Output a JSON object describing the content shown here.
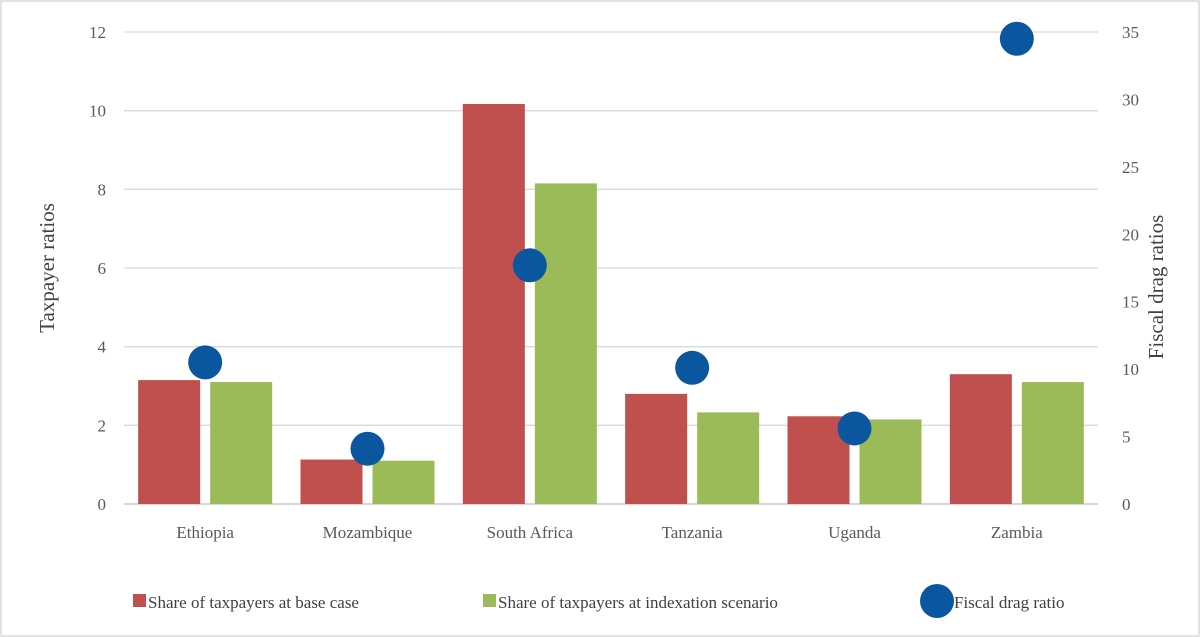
{
  "chart_data": {
    "type": "bar",
    "categories": [
      "Ethiopia",
      "Mozambique",
      "South Africa",
      "Tanzania",
      "Uganda",
      "Zambia"
    ],
    "series": [
      {
        "name": "Share of taxpayers at base case",
        "kind": "bar",
        "axis": "left",
        "color": "#c0504d",
        "values": [
          3.15,
          1.13,
          10.17,
          2.8,
          2.23,
          3.3
        ]
      },
      {
        "name": "Share of taxpayers at indexation scenario",
        "kind": "bar",
        "axis": "left",
        "color": "#9bbb59",
        "values": [
          3.1,
          1.1,
          8.15,
          2.33,
          2.15,
          3.1
        ]
      },
      {
        "name": "Fiscal drag ratio",
        "kind": "scatter",
        "axis": "right",
        "color": "#0b579f",
        "values": [
          10.5,
          4.1,
          17.7,
          10.1,
          5.6,
          34.5
        ]
      }
    ],
    "ylabel": "Taxpayer ratios",
    "y2label": "Fiscal drag ratios",
    "ylim": [
      0,
      12
    ],
    "y2lim": [
      0,
      35
    ],
    "yticks": [
      "0",
      "2",
      "4",
      "6",
      "8",
      "10",
      "12"
    ],
    "y2ticks": [
      "0",
      "5",
      "10",
      "15",
      "20",
      "25",
      "30",
      "35"
    ],
    "grid": true,
    "legend_position": "bottom"
  }
}
